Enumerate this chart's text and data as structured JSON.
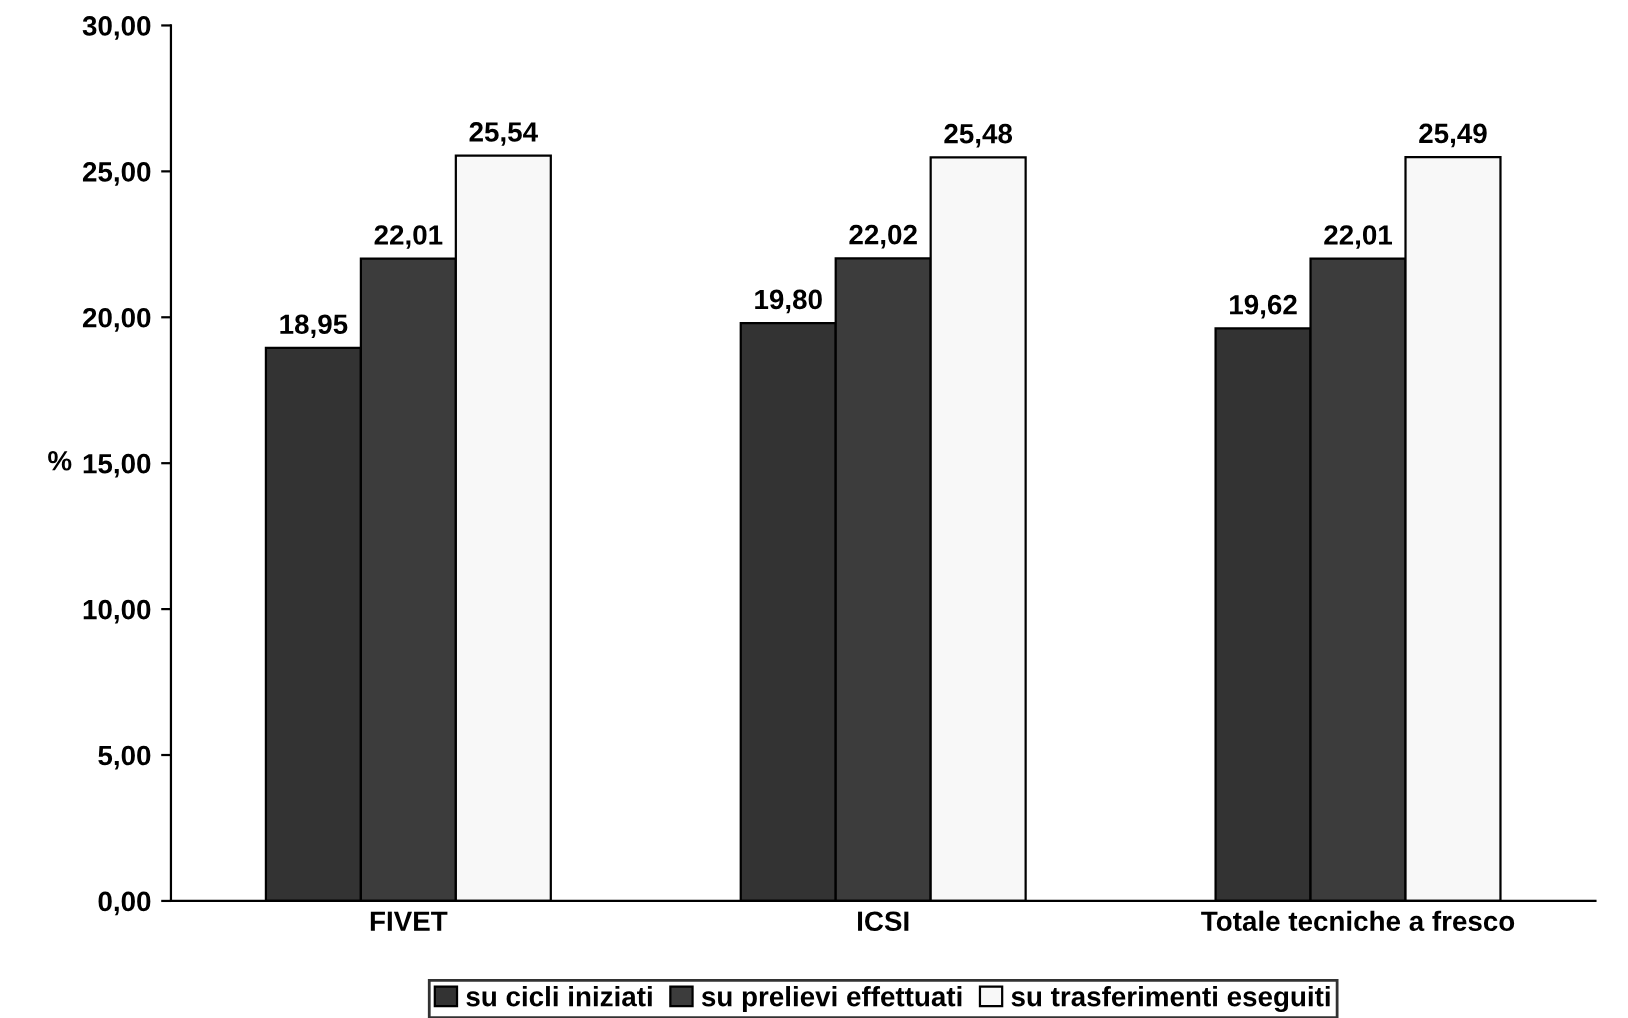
{
  "chart_data": {
    "type": "bar",
    "ylabel": "%",
    "categories": [
      "FIVET",
      "ICSI",
      "Totale tecniche a fresco"
    ],
    "series": [
      {
        "name": "su cicli iniziati",
        "color": "#333333",
        "values": [
          18.95,
          19.8,
          19.62
        ],
        "value_labels": [
          "18,95",
          "19,80",
          "19,62"
        ]
      },
      {
        "name": "su prelievi effettuati",
        "color": "#3c3c3c",
        "values": [
          22.01,
          22.02,
          22.01
        ],
        "value_labels": [
          "22,01",
          "22,02",
          "22,01"
        ]
      },
      {
        "name": "su trasferimenti eseguiti",
        "color": "#f8f8f8",
        "values": [
          25.54,
          25.48,
          25.49
        ],
        "value_labels": [
          "25,54",
          "25,48",
          "25,49"
        ]
      }
    ],
    "ylim": [
      0,
      30
    ],
    "yticks": [
      {
        "value": 0,
        "label": "0,00"
      },
      {
        "value": 5,
        "label": "5,00"
      },
      {
        "value": 10,
        "label": "10,00"
      },
      {
        "value": 15,
        "label": "15,00"
      },
      {
        "value": 20,
        "label": "20,00"
      },
      {
        "value": 25,
        "label": "25,00"
      },
      {
        "value": 30,
        "label": "30,00"
      }
    ],
    "grid": false,
    "legend": "bottom"
  }
}
